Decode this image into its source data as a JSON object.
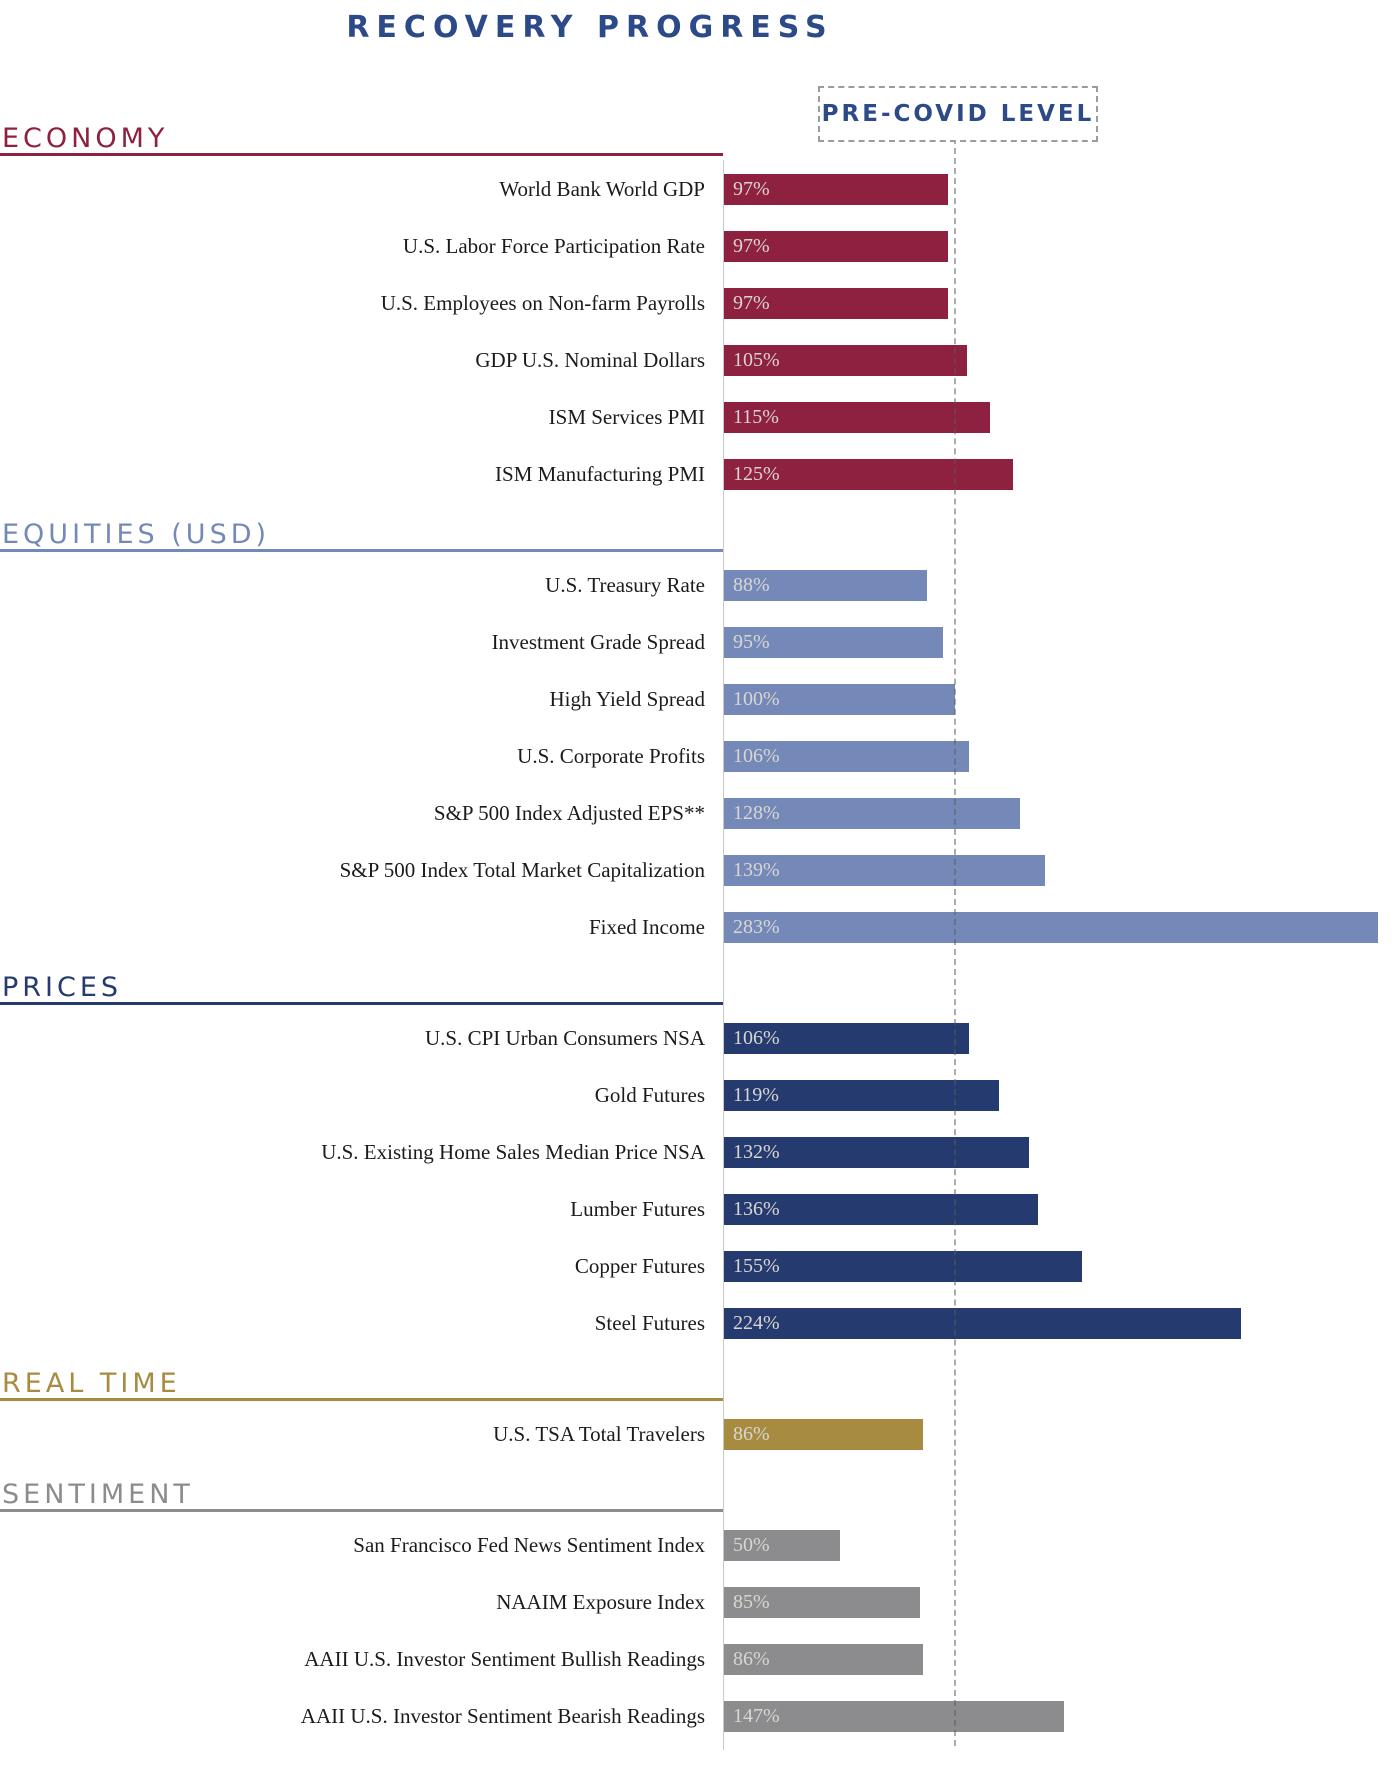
{
  "title": "RECOVERY PROGRESS",
  "annotation": {
    "label": "PRE-COVID LEVEL"
  },
  "colors": {
    "title_blue": "#2C4A87",
    "axis_gray": "#C9C9C9",
    "reference_dash_gray": "#9B9B9B",
    "bar_value_text": "#D9D6D1",
    "row_label_text": "#1B1B1B"
  },
  "chart_data": {
    "type": "bar",
    "orientation": "horizontal",
    "title": "RECOVERY PROGRESS",
    "unit": "percent of pre-COVID level",
    "reference_line": {
      "label": "PRE-COVID LEVEL",
      "value": 100
    },
    "xlim": [
      0,
      291
    ],
    "grid": false,
    "legend": "none",
    "sections": [
      {
        "name": "ECONOMY",
        "color": "#8E2140",
        "rows": [
          {
            "label": "World Bank World GDP",
            "value": 97,
            "value_label": "97%"
          },
          {
            "label": "U.S. Labor Force Participation Rate",
            "value": 97,
            "value_label": "97%"
          },
          {
            "label": "U.S. Employees on Non-farm Payrolls",
            "value": 97,
            "value_label": "97%"
          },
          {
            "label": "GDP U.S. Nominal Dollars",
            "value": 105,
            "value_label": "105%"
          },
          {
            "label": "ISM Services PMI",
            "value": 115,
            "value_label": "115%"
          },
          {
            "label": "ISM Manufacturing PMI",
            "value": 125,
            "value_label": "125%"
          }
        ]
      },
      {
        "name": "EQUITIES (USD)",
        "color": "#7589B8",
        "rows": [
          {
            "label": "U.S. Treasury Rate",
            "value": 88,
            "value_label": "88%"
          },
          {
            "label": "Investment Grade Spread",
            "value": 95,
            "value_label": "95%"
          },
          {
            "label": "High Yield Spread",
            "value": 100,
            "value_label": "100%"
          },
          {
            "label": "U.S. Corporate Profits",
            "value": 106,
            "value_label": "106%"
          },
          {
            "label": "S&P 500 Index Adjusted EPS**",
            "value": 128,
            "value_label": "128%"
          },
          {
            "label": "S&P 500 Index Total Market Capitalization",
            "value": 139,
            "value_label": "139%"
          },
          {
            "label": "Fixed Income",
            "value": 283,
            "value_label": "283%"
          }
        ]
      },
      {
        "name": "PRICES",
        "color": "#253A6E",
        "rows": [
          {
            "label": "U.S. CPI Urban Consumers NSA",
            "value": 106,
            "value_label": "106%"
          },
          {
            "label": "Gold Futures",
            "value": 119,
            "value_label": "119%"
          },
          {
            "label": "U.S. Existing Home Sales Median Price NSA",
            "value": 132,
            "value_label": "132%"
          },
          {
            "label": "Lumber Futures",
            "value": 136,
            "value_label": "136%"
          },
          {
            "label": "Copper Futures",
            "value": 155,
            "value_label": "155%"
          },
          {
            "label": "Steel Futures",
            "value": 224,
            "value_label": "224%"
          }
        ]
      },
      {
        "name": "REAL TIME",
        "color": "#A68B40",
        "rows": [
          {
            "label": "U.S. TSA Total Travelers",
            "value": 86,
            "value_label": "86%"
          }
        ]
      },
      {
        "name": "SENTIMENT",
        "color": "#8C8C8E",
        "rows": [
          {
            "label": "San Francisco Fed News Sentiment Index",
            "value": 50,
            "value_label": "50%"
          },
          {
            "label": "NAAIM Exposure Index",
            "value": 85,
            "value_label": "85%"
          },
          {
            "label": "AAII U.S. Investor Sentiment Bullish Readings",
            "value": 86,
            "value_label": "86%"
          },
          {
            "label": "AAII U.S. Investor Sentiment Bearish Readings",
            "value": 147,
            "value_label": "147%"
          }
        ]
      }
    ]
  }
}
